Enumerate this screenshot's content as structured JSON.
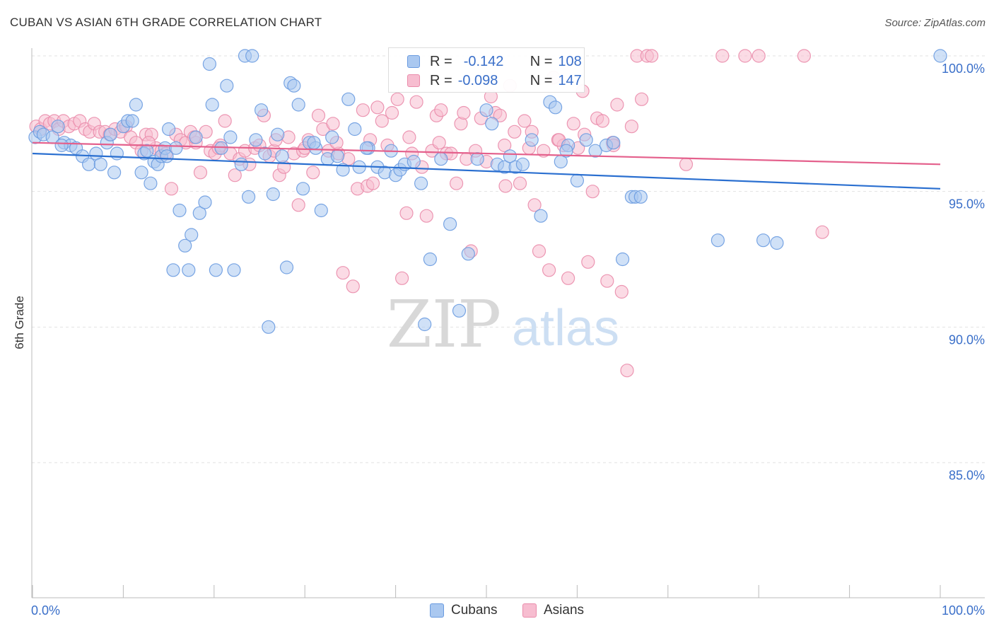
{
  "header": {
    "title": "CUBAN VS ASIAN 6TH GRADE CORRELATION CHART",
    "source": "Source: ZipAtlas.com"
  },
  "watermark": {
    "zip": "ZIP",
    "atlas": "atlas"
  },
  "legend": {
    "series": [
      {
        "name": "Cubans",
        "r_label": "R =",
        "r_value": "-0.142",
        "n_label": "N =",
        "n_value": "108",
        "fill": "#aac8f0",
        "stroke": "#6a9be0"
      },
      {
        "name": "Asians",
        "r_label": "R =",
        "r_value": "-0.098",
        "n_label": "N =",
        "n_value": "147",
        "fill": "#f7bdd0",
        "stroke": "#ea8cab"
      }
    ]
  },
  "chart_data": {
    "type": "scatter",
    "title": "CUBAN VS ASIAN 6TH GRADE CORRELATION CHART",
    "xlabel": "",
    "ylabel": "6th Grade",
    "xlim": [
      0,
      100
    ],
    "ylim": [
      80.5,
      101.0
    ],
    "x_tick_labels": [
      "0.0%",
      "100.0%"
    ],
    "y_ticks": [
      85.0,
      90.0,
      95.0,
      100.0
    ],
    "y_tick_labels": [
      "85.0%",
      "90.0%",
      "95.0%",
      "100.0%"
    ],
    "grid": true,
    "legend_position": "top-center",
    "series": [
      {
        "name": "Cubans",
        "color": "#6a9be0",
        "fill": "#aac8f0",
        "trend": {
          "x": [
            0,
            100
          ],
          "y": [
            96.4,
            95.1
          ]
        },
        "points": [
          [
            0.3,
            97.0
          ],
          [
            0.8,
            97.2
          ],
          [
            1.2,
            97.1
          ],
          [
            2.2,
            97.0
          ],
          [
            2.8,
            97.4
          ],
          [
            3.5,
            96.8
          ],
          [
            4.2,
            96.7
          ],
          [
            4.8,
            96.6
          ],
          [
            5.5,
            96.3
          ],
          [
            6.2,
            96.0
          ],
          [
            7.0,
            96.4
          ],
          [
            7.5,
            96.0
          ],
          [
            8.2,
            96.8
          ],
          [
            8.6,
            97.1
          ],
          [
            9.0,
            95.7
          ],
          [
            9.3,
            96.4
          ],
          [
            10.0,
            97.4
          ],
          [
            10.5,
            97.6
          ],
          [
            11.0,
            97.6
          ],
          [
            11.4,
            98.2
          ],
          [
            12.0,
            95.7
          ],
          [
            12.3,
            96.4
          ],
          [
            12.6,
            96.5
          ],
          [
            13.0,
            95.3
          ],
          [
            13.4,
            96.1
          ],
          [
            13.8,
            96.0
          ],
          [
            14.2,
            96.3
          ],
          [
            14.6,
            96.6
          ],
          [
            15.0,
            97.3
          ],
          [
            15.5,
            92.1
          ],
          [
            15.8,
            96.6
          ],
          [
            16.2,
            94.3
          ],
          [
            16.8,
            93.0
          ],
          [
            17.2,
            92.1
          ],
          [
            17.5,
            93.4
          ],
          [
            18.0,
            97.0
          ],
          [
            18.4,
            94.2
          ],
          [
            19.0,
            94.6
          ],
          [
            19.5,
            99.7
          ],
          [
            19.8,
            98.2
          ],
          [
            20.2,
            92.1
          ],
          [
            20.8,
            96.6
          ],
          [
            21.4,
            98.9
          ],
          [
            21.8,
            97.0
          ],
          [
            22.2,
            92.1
          ],
          [
            23.0,
            96.0
          ],
          [
            23.4,
            100.0
          ],
          [
            23.8,
            94.8
          ],
          [
            24.2,
            100.0
          ],
          [
            24.6,
            96.9
          ],
          [
            25.2,
            98.0
          ],
          [
            25.6,
            96.4
          ],
          [
            26.0,
            90.0
          ],
          [
            26.5,
            94.9
          ],
          [
            27.0,
            97.1
          ],
          [
            27.5,
            96.3
          ],
          [
            28.0,
            92.2
          ],
          [
            28.4,
            99.0
          ],
          [
            28.8,
            98.9
          ],
          [
            29.3,
            98.2
          ],
          [
            29.8,
            95.1
          ],
          [
            30.5,
            96.8
          ],
          [
            31.2,
            96.6
          ],
          [
            31.8,
            94.3
          ],
          [
            32.5,
            96.2
          ],
          [
            33.0,
            97.0
          ],
          [
            33.6,
            96.3
          ],
          [
            34.2,
            95.8
          ],
          [
            34.8,
            98.4
          ],
          [
            35.5,
            97.3
          ],
          [
            36.0,
            95.9
          ],
          [
            37.0,
            96.6
          ],
          [
            38.0,
            95.9
          ],
          [
            38.8,
            95.7
          ],
          [
            39.5,
            96.5
          ],
          [
            40.0,
            95.6
          ],
          [
            40.5,
            95.8
          ],
          [
            41.0,
            96.0
          ],
          [
            42.0,
            96.1
          ],
          [
            42.8,
            95.3
          ],
          [
            43.2,
            90.1
          ],
          [
            43.8,
            92.5
          ],
          [
            45.0,
            96.2
          ],
          [
            46.0,
            93.8
          ],
          [
            47.0,
            90.6
          ],
          [
            48.0,
            92.7
          ],
          [
            49.0,
            96.2
          ],
          [
            50.0,
            98.0
          ],
          [
            50.6,
            97.5
          ],
          [
            51.2,
            96.0
          ],
          [
            52.0,
            95.9
          ],
          [
            52.6,
            96.3
          ],
          [
            53.2,
            95.9
          ],
          [
            54.0,
            96.0
          ],
          [
            55.0,
            96.9
          ],
          [
            56.0,
            94.1
          ],
          [
            57.0,
            98.3
          ],
          [
            57.6,
            98.1
          ],
          [
            58.2,
            96.1
          ],
          [
            59.0,
            96.7
          ],
          [
            60.0,
            95.4
          ],
          [
            61.0,
            96.9
          ],
          [
            62.0,
            96.5
          ],
          [
            63.2,
            96.7
          ],
          [
            64.0,
            96.8
          ],
          [
            65.0,
            92.5
          ],
          [
            66.0,
            94.8
          ],
          [
            66.4,
            94.8
          ],
          [
            67.0,
            94.8
          ],
          [
            75.5,
            93.2
          ],
          [
            80.5,
            93.2
          ],
          [
            82.0,
            93.1
          ],
          [
            100.0,
            100.0
          ],
          [
            14.8,
            96.3
          ],
          [
            3.2,
            96.7
          ],
          [
            31.0,
            96.8
          ],
          [
            36.8,
            96.6
          ],
          [
            58.8,
            96.5
          ]
        ]
      },
      {
        "name": "Asians",
        "color": "#ea8cab",
        "fill": "#f7bdd0",
        "trend": {
          "x": [
            0,
            100
          ],
          "y": [
            96.8,
            96.0
          ]
        },
        "points": [
          [
            0.4,
            97.4
          ],
          [
            0.9,
            97.3
          ],
          [
            1.4,
            97.6
          ],
          [
            1.9,
            97.5
          ],
          [
            2.4,
            97.6
          ],
          [
            2.9,
            97.3
          ],
          [
            3.4,
            97.6
          ],
          [
            4.0,
            97.4
          ],
          [
            4.6,
            97.5
          ],
          [
            5.2,
            97.6
          ],
          [
            5.8,
            97.3
          ],
          [
            6.3,
            97.2
          ],
          [
            6.8,
            97.5
          ],
          [
            7.4,
            97.2
          ],
          [
            8.0,
            97.2
          ],
          [
            8.5,
            97.1
          ],
          [
            9.1,
            97.3
          ],
          [
            9.7,
            97.2
          ],
          [
            10.3,
            97.4
          ],
          [
            10.8,
            97.0
          ],
          [
            11.4,
            96.8
          ],
          [
            12.0,
            96.5
          ],
          [
            12.5,
            97.1
          ],
          [
            13.1,
            97.1
          ],
          [
            13.6,
            96.6
          ],
          [
            14.2,
            96.5
          ],
          [
            14.7,
            96.4
          ],
          [
            15.3,
            95.1
          ],
          [
            15.8,
            97.1
          ],
          [
            16.3,
            96.9
          ],
          [
            16.9,
            96.8
          ],
          [
            17.4,
            97.2
          ],
          [
            18.0,
            96.8
          ],
          [
            18.5,
            95.7
          ],
          [
            19.1,
            97.2
          ],
          [
            19.6,
            96.5
          ],
          [
            20.1,
            96.4
          ],
          [
            20.7,
            96.7
          ],
          [
            21.2,
            97.6
          ],
          [
            21.8,
            96.4
          ],
          [
            22.3,
            95.6
          ],
          [
            22.8,
            96.2
          ],
          [
            23.4,
            96.5
          ],
          [
            23.9,
            96.0
          ],
          [
            24.5,
            96.6
          ],
          [
            25.0,
            96.7
          ],
          [
            25.5,
            97.8
          ],
          [
            26.1,
            96.3
          ],
          [
            26.6,
            96.5
          ],
          [
            27.2,
            95.6
          ],
          [
            27.7,
            95.9
          ],
          [
            28.2,
            97.0
          ],
          [
            28.8,
            96.4
          ],
          [
            29.3,
            94.5
          ],
          [
            29.8,
            96.5
          ],
          [
            30.4,
            96.9
          ],
          [
            30.9,
            95.7
          ],
          [
            31.5,
            97.8
          ],
          [
            32.0,
            97.3
          ],
          [
            32.6,
            96.5
          ],
          [
            33.1,
            97.5
          ],
          [
            33.7,
            96.4
          ],
          [
            34.2,
            92.0
          ],
          [
            34.8,
            96.2
          ],
          [
            35.3,
            91.5
          ],
          [
            35.8,
            95.1
          ],
          [
            36.4,
            98.0
          ],
          [
            36.9,
            95.2
          ],
          [
            37.5,
            95.3
          ],
          [
            38.0,
            98.1
          ],
          [
            38.5,
            97.6
          ],
          [
            39.1,
            96.7
          ],
          [
            39.6,
            97.9
          ],
          [
            40.2,
            98.4
          ],
          [
            40.7,
            91.8
          ],
          [
            41.2,
            94.2
          ],
          [
            41.8,
            96.4
          ],
          [
            42.3,
            98.3
          ],
          [
            42.9,
            95.9
          ],
          [
            43.4,
            94.1
          ],
          [
            44.0,
            96.5
          ],
          [
            44.5,
            97.8
          ],
          [
            45.0,
            98.0
          ],
          [
            45.6,
            96.4
          ],
          [
            46.1,
            96.4
          ],
          [
            46.7,
            95.3
          ],
          [
            47.2,
            97.5
          ],
          [
            47.8,
            96.2
          ],
          [
            48.3,
            92.8
          ],
          [
            48.8,
            96.5
          ],
          [
            49.4,
            97.7
          ],
          [
            50.0,
            96.1
          ],
          [
            50.5,
            98.5
          ],
          [
            51.0,
            97.9
          ],
          [
            51.5,
            97.8
          ],
          [
            52.1,
            95.2
          ],
          [
            52.6,
            98.9
          ],
          [
            53.1,
            97.2
          ],
          [
            53.7,
            95.3
          ],
          [
            54.2,
            97.6
          ],
          [
            54.7,
            96.6
          ],
          [
            55.3,
            94.5
          ],
          [
            55.8,
            92.8
          ],
          [
            56.3,
            96.5
          ],
          [
            56.9,
            92.1
          ],
          [
            57.4,
            99.2
          ],
          [
            57.9,
            96.9
          ],
          [
            58.5,
            96.7
          ],
          [
            59.0,
            91.8
          ],
          [
            59.6,
            97.5
          ],
          [
            60.1,
            96.6
          ],
          [
            60.6,
            98.7
          ],
          [
            61.2,
            92.4
          ],
          [
            61.7,
            95.0
          ],
          [
            62.2,
            97.7
          ],
          [
            62.8,
            97.6
          ],
          [
            63.3,
            91.7
          ],
          [
            63.9,
            96.8
          ],
          [
            64.4,
            98.2
          ],
          [
            64.9,
            91.3
          ],
          [
            65.5,
            88.4
          ],
          [
            66.0,
            97.4
          ],
          [
            66.6,
            100.0
          ],
          [
            67.1,
            98.4
          ],
          [
            67.7,
            100.0
          ],
          [
            68.2,
            100.0
          ],
          [
            72.0,
            96.0
          ],
          [
            76.0,
            100.0
          ],
          [
            78.5,
            100.0
          ],
          [
            80.0,
            100.0
          ],
          [
            85.0,
            100.0
          ],
          [
            87.0,
            93.5
          ],
          [
            44.8,
            96.8
          ],
          [
            47.5,
            97.9
          ],
          [
            55.0,
            97.2
          ],
          [
            58.0,
            96.9
          ],
          [
            60.8,
            97.1
          ],
          [
            64.0,
            96.7
          ],
          [
            37.2,
            96.9
          ],
          [
            26.8,
            96.9
          ],
          [
            17.8,
            97.0
          ],
          [
            12.8,
            96.8
          ],
          [
            20.5,
            96.6
          ],
          [
            30.0,
            96.6
          ],
          [
            33.5,
            96.8
          ],
          [
            41.5,
            97.0
          ],
          [
            52.0,
            96.7
          ]
        ]
      }
    ]
  }
}
